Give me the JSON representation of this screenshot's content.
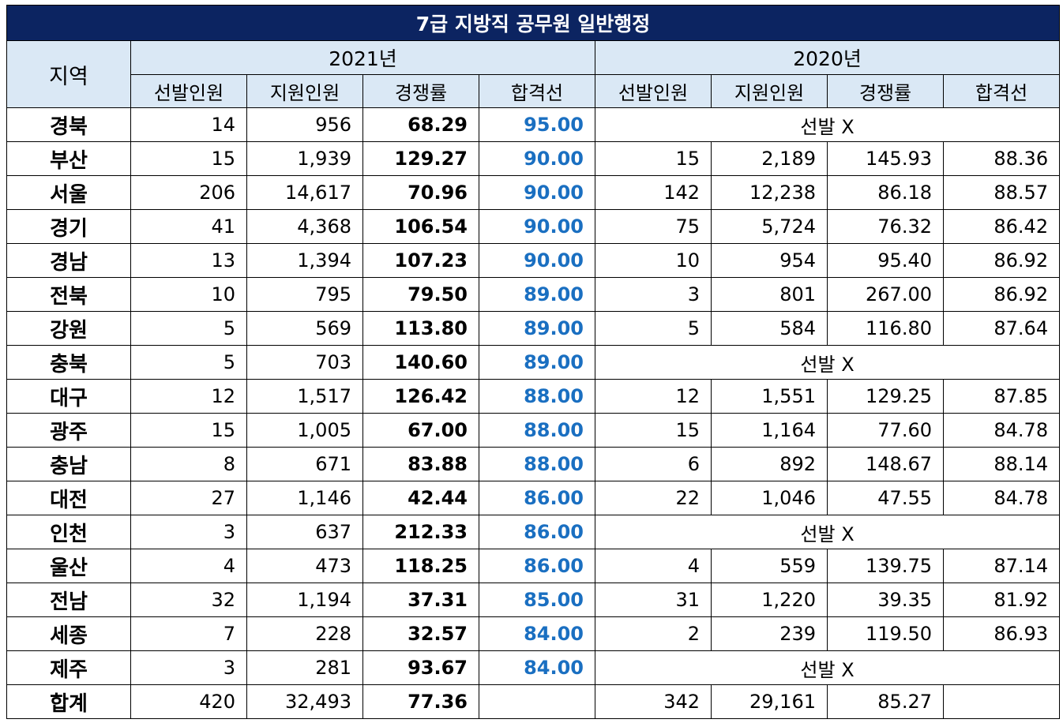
{
  "title": "7급 지방직 공무원 일반행정",
  "region_header": "지역",
  "years": [
    "2021년",
    "2020년"
  ],
  "subheaders": [
    "선발인원",
    "지원인원",
    "경쟁률",
    "합격선"
  ],
  "not_selected_label": "선발 X",
  "colors": {
    "title_bg": "#0c2461",
    "header_bg": "#dae8f5",
    "cutoff_2021": "#1a6fc1"
  },
  "rows": [
    {
      "region": "경북",
      "y2021": [
        "14",
        "956",
        "68.29",
        "95.00"
      ],
      "y2020": null
    },
    {
      "region": "부산",
      "y2021": [
        "15",
        "1,939",
        "129.27",
        "90.00"
      ],
      "y2020": [
        "15",
        "2,189",
        "145.93",
        "88.36"
      ]
    },
    {
      "region": "서울",
      "y2021": [
        "206",
        "14,617",
        "70.96",
        "90.00"
      ],
      "y2020": [
        "142",
        "12,238",
        "86.18",
        "88.57"
      ]
    },
    {
      "region": "경기",
      "y2021": [
        "41",
        "4,368",
        "106.54",
        "90.00"
      ],
      "y2020": [
        "75",
        "5,724",
        "76.32",
        "86.42"
      ]
    },
    {
      "region": "경남",
      "y2021": [
        "13",
        "1,394",
        "107.23",
        "90.00"
      ],
      "y2020": [
        "10",
        "954",
        "95.40",
        "86.92"
      ]
    },
    {
      "region": "전북",
      "y2021": [
        "10",
        "795",
        "79.50",
        "89.00"
      ],
      "y2020": [
        "3",
        "801",
        "267.00",
        "86.92"
      ]
    },
    {
      "region": "강원",
      "y2021": [
        "5",
        "569",
        "113.80",
        "89.00"
      ],
      "y2020": [
        "5",
        "584",
        "116.80",
        "87.64"
      ]
    },
    {
      "region": "충북",
      "y2021": [
        "5",
        "703",
        "140.60",
        "89.00"
      ],
      "y2020": null
    },
    {
      "region": "대구",
      "y2021": [
        "12",
        "1,517",
        "126.42",
        "88.00"
      ],
      "y2020": [
        "12",
        "1,551",
        "129.25",
        "87.85"
      ]
    },
    {
      "region": "광주",
      "y2021": [
        "15",
        "1,005",
        "67.00",
        "88.00"
      ],
      "y2020": [
        "15",
        "1,164",
        "77.60",
        "84.78"
      ]
    },
    {
      "region": "충남",
      "y2021": [
        "8",
        "671",
        "83.88",
        "88.00"
      ],
      "y2020": [
        "6",
        "892",
        "148.67",
        "88.14"
      ]
    },
    {
      "region": "대전",
      "y2021": [
        "27",
        "1,146",
        "42.44",
        "86.00"
      ],
      "y2020": [
        "22",
        "1,046",
        "47.55",
        "84.78"
      ]
    },
    {
      "region": "인천",
      "y2021": [
        "3",
        "637",
        "212.33",
        "86.00"
      ],
      "y2020": null
    },
    {
      "region": "울산",
      "y2021": [
        "4",
        "473",
        "118.25",
        "86.00"
      ],
      "y2020": [
        "4",
        "559",
        "139.75",
        "87.14"
      ]
    },
    {
      "region": "전남",
      "y2021": [
        "32",
        "1,194",
        "37.31",
        "85.00"
      ],
      "y2020": [
        "31",
        "1,220",
        "39.35",
        "81.92"
      ]
    },
    {
      "region": "세종",
      "y2021": [
        "7",
        "228",
        "32.57",
        "84.00"
      ],
      "y2020": [
        "2",
        "239",
        "119.50",
        "86.93"
      ]
    },
    {
      "region": "제주",
      "y2021": [
        "3",
        "281",
        "93.67",
        "84.00"
      ],
      "y2020": null
    },
    {
      "region": "합계",
      "y2021": [
        "420",
        "32,493",
        "77.36",
        ""
      ],
      "y2020": [
        "342",
        "29,161",
        "85.27",
        ""
      ]
    }
  ]
}
